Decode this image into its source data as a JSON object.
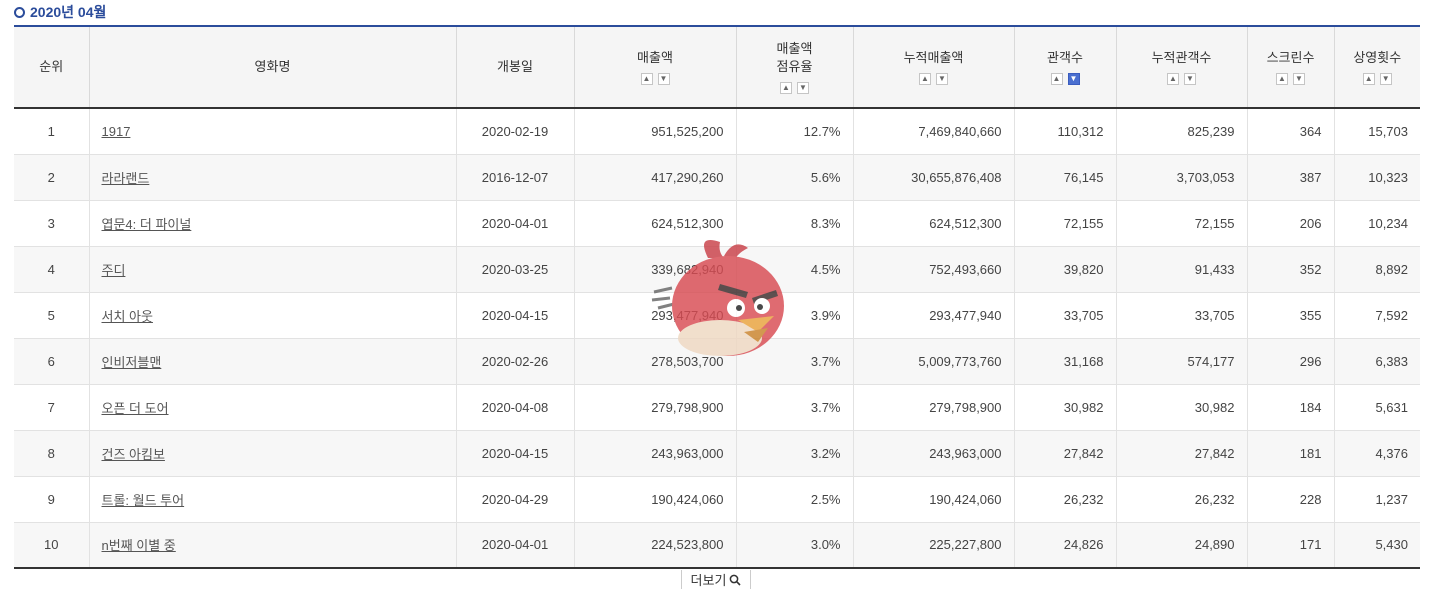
{
  "period_label": "2020년 04월",
  "columns": {
    "rank": "순위",
    "title": "영화명",
    "open_date": "개봉일",
    "sales": "매출액",
    "share_line1": "매출액",
    "share_line2": "점유율",
    "cum_sales": "누적매출액",
    "audience": "관객수",
    "cum_audience": "누적관객수",
    "screens": "스크린수",
    "shows": "상영횟수"
  },
  "sort_icons": {
    "up": "chevron-up-icon",
    "down": "chevron-down-icon",
    "active": "audience-desc"
  },
  "rows": [
    {
      "rank": "1",
      "title": "1917",
      "open_date": "2020-02-19",
      "sales": "951,525,200",
      "share": "12.7%",
      "cum_sales": "7,469,840,660",
      "audience": "110,312",
      "cum_audience": "825,239",
      "screens": "364",
      "shows": "15,703"
    },
    {
      "rank": "2",
      "title": "라라랜드",
      "open_date": "2016-12-07",
      "sales": "417,290,260",
      "share": "5.6%",
      "cum_sales": "30,655,876,408",
      "audience": "76,145",
      "cum_audience": "3,703,053",
      "screens": "387",
      "shows": "10,323"
    },
    {
      "rank": "3",
      "title": "엽문4: 더 파이널",
      "open_date": "2020-04-01",
      "sales": "624,512,300",
      "share": "8.3%",
      "cum_sales": "624,512,300",
      "audience": "72,155",
      "cum_audience": "72,155",
      "screens": "206",
      "shows": "10,234"
    },
    {
      "rank": "4",
      "title": "주디",
      "open_date": "2020-03-25",
      "sales": "339,682,940",
      "share": "4.5%",
      "cum_sales": "752,493,660",
      "audience": "39,820",
      "cum_audience": "91,433",
      "screens": "352",
      "shows": "8,892"
    },
    {
      "rank": "5",
      "title": "서치 아웃",
      "open_date": "2020-04-15",
      "sales": "293,477,940",
      "share": "3.9%",
      "cum_sales": "293,477,940",
      "audience": "33,705",
      "cum_audience": "33,705",
      "screens": "355",
      "shows": "7,592"
    },
    {
      "rank": "6",
      "title": "인비저블맨",
      "open_date": "2020-02-26",
      "sales": "278,503,700",
      "share": "3.7%",
      "cum_sales": "5,009,773,760",
      "audience": "31,168",
      "cum_audience": "574,177",
      "screens": "296",
      "shows": "6,383"
    },
    {
      "rank": "7",
      "title": "오픈 더 도어",
      "open_date": "2020-04-08",
      "sales": "279,798,900",
      "share": "3.7%",
      "cum_sales": "279,798,900",
      "audience": "30,982",
      "cum_audience": "30,982",
      "screens": "184",
      "shows": "5,631"
    },
    {
      "rank": "8",
      "title": "건즈 아킴보",
      "open_date": "2020-04-15",
      "sales": "243,963,000",
      "share": "3.2%",
      "cum_sales": "243,963,000",
      "audience": "27,842",
      "cum_audience": "27,842",
      "screens": "181",
      "shows": "4,376"
    },
    {
      "rank": "9",
      "title": "트롤: 월드 투어",
      "open_date": "2020-04-29",
      "sales": "190,424,060",
      "share": "2.5%",
      "cum_sales": "190,424,060",
      "audience": "26,232",
      "cum_audience": "26,232",
      "screens": "228",
      "shows": "1,237"
    },
    {
      "rank": "10",
      "title": "n번째 이별 중",
      "open_date": "2020-04-01",
      "sales": "224,523,800",
      "share": "3.0%",
      "cum_sales": "225,227,800",
      "audience": "24,826",
      "cum_audience": "24,890",
      "screens": "171",
      "shows": "5,430"
    }
  ],
  "more_button": {
    "label": "더보기",
    "icon": "search-icon"
  },
  "colors": {
    "accent": "#2b4c9b",
    "active_sort": "#4a6fd0",
    "header_bg": "#f5f5f5",
    "alt_row": "#f7f7f7"
  },
  "overlay_image": "red-bird-sticker"
}
